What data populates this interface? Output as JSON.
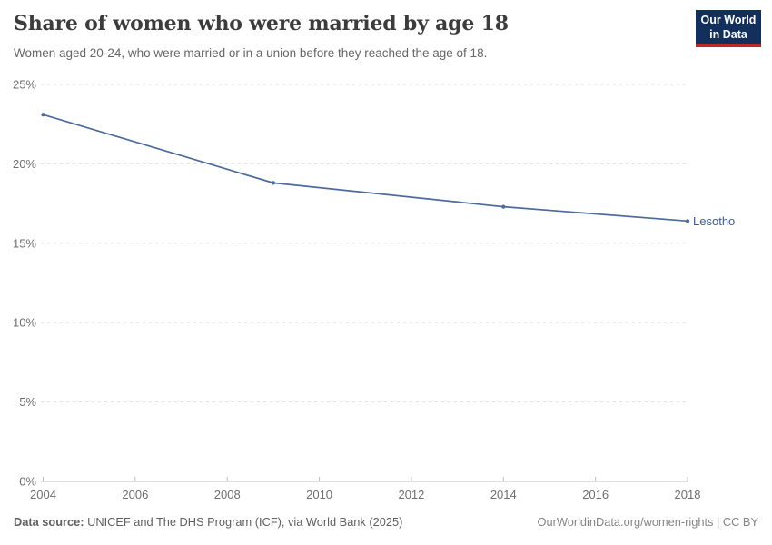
{
  "header": {
    "title": "Share of women who were married by age 18",
    "subtitle": "Women aged 20-24, who were married or in a union before they reached the age of 18.",
    "logo": {
      "line1": "Our World",
      "line2": "in Data",
      "bg_color": "#12305b",
      "accent_color": "#bc2b23"
    }
  },
  "chart_data": {
    "type": "line",
    "title": "Share of women who were married by age 18",
    "subtitle": "Women aged 20-24, who were married or in a union before they reached the age of 18.",
    "xlim": [
      2004,
      2018
    ],
    "ylim": [
      0,
      25
    ],
    "x_ticks": [
      2004,
      2006,
      2008,
      2010,
      2012,
      2014,
      2016,
      2018
    ],
    "y_ticks": [
      0,
      5,
      10,
      15,
      20,
      25
    ],
    "y_tick_suffix": "%",
    "grid": "dashed-horizontal",
    "legend_position": "end-of-line-label",
    "series": [
      {
        "name": "Lesotho",
        "color": "#4c6a9c",
        "points": [
          {
            "x": 2004,
            "y": 23.1
          },
          {
            "x": 2009,
            "y": 18.8
          },
          {
            "x": 2014,
            "y": 17.3
          },
          {
            "x": 2018,
            "y": 16.4
          }
        ]
      }
    ],
    "colors": {
      "grid": "#dddddd",
      "axis": "#bdbdbd",
      "tick_text": "#6e6e6e",
      "series_label": "#3d5a96"
    }
  },
  "footer": {
    "source_label": "Data source:",
    "source_rest": " UNICEF and The DHS Program (ICF), via World Bank (2025)",
    "credit": "OurWorldinData.org/women-rights | CC BY"
  }
}
